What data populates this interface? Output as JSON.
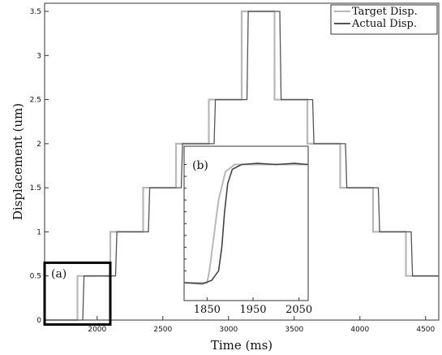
{
  "chart_data": [
    {
      "id": "main",
      "type": "line",
      "xlabel": "Time (ms)",
      "ylabel": "Displacement (um)",
      "xlim": [
        1600,
        4600
      ],
      "ylim": [
        0,
        3.5
      ],
      "x_ticks": [
        2000,
        2500,
        3000,
        3500,
        4000,
        4500
      ],
      "x_tick_labels": [
        "2000",
        "2500",
        "3000",
        "3500",
        "4000",
        "4500"
      ],
      "y_ticks": [
        0,
        0.5,
        1,
        1.5,
        2,
        2.5,
        3,
        3.5
      ],
      "y_tick_labels": [
        "0",
        "0.5",
        "1",
        "1.5",
        "2",
        "2.5",
        "3",
        "3.5"
      ],
      "grid": false,
      "legend_position": "top-right",
      "series": [
        {
          "name": "Target Disp.",
          "color": "#b8b8b8",
          "x": [
            1600,
            1850,
            1850,
            2100,
            2100,
            2350,
            2350,
            2600,
            2600,
            2850,
            2850,
            3100,
            3100,
            3350,
            3350,
            3600,
            3600,
            3850,
            3850,
            4100,
            4100,
            4350,
            4350,
            4600
          ],
          "y": [
            0,
            0,
            0.5,
            0.5,
            1.0,
            1.0,
            1.5,
            1.5,
            2.0,
            2.0,
            2.5,
            2.5,
            3.5,
            3.5,
            2.5,
            2.5,
            2.0,
            2.0,
            1.5,
            1.5,
            1.0,
            1.0,
            0.5,
            0.5
          ]
        },
        {
          "name": "Actual Disp.",
          "color": "#555555",
          "x": [
            1600,
            1890,
            1900,
            2140,
            2150,
            2390,
            2400,
            2640,
            2650,
            2890,
            2900,
            3140,
            3150,
            3390,
            3400,
            3640,
            3650,
            3890,
            3900,
            4140,
            4150,
            4390,
            4400,
            4600
          ],
          "y": [
            0,
            0,
            0.5,
            0.5,
            1.0,
            1.0,
            1.5,
            1.5,
            2.0,
            2.0,
            2.5,
            2.5,
            3.5,
            3.5,
            2.5,
            2.5,
            2.0,
            2.0,
            1.5,
            1.5,
            1.0,
            1.0,
            0.5,
            0.5
          ]
        }
      ],
      "annotations": [
        {
          "label": "(a)",
          "box_x": [
            1600,
            2100
          ],
          "box_y": [
            -0.05,
            0.65
          ]
        }
      ]
    },
    {
      "id": "inset",
      "type": "line",
      "panel_label": "(b)",
      "xlim": [
        1800,
        2070
      ],
      "ylim": [
        0,
        0.55
      ],
      "x_ticks": [
        1850,
        1950,
        2050
      ],
      "x_tick_labels": [
        "1850",
        "1950",
        "2050"
      ],
      "y_ticks": [
        0,
        0.05,
        0.1,
        0.15,
        0.2,
        0.25,
        0.3,
        0.35,
        0.4,
        0.45,
        0.5
      ],
      "series": [
        {
          "name": "Target Disp.",
          "color": "#b8b8b8",
          "x": [
            1800,
            1850,
            1855,
            1865,
            1875,
            1890,
            1910,
            2070
          ],
          "y": [
            0,
            0,
            0.05,
            0.2,
            0.35,
            0.47,
            0.5,
            0.5
          ]
        },
        {
          "name": "Actual Disp.",
          "color": "#444444",
          "x": [
            1800,
            1840,
            1860,
            1875,
            1882,
            1888,
            1895,
            1905,
            1925,
            1960,
            2000,
            2040,
            2070
          ],
          "y": [
            0,
            -0.005,
            0.01,
            0.05,
            0.15,
            0.3,
            0.42,
            0.48,
            0.5,
            0.505,
            0.5,
            0.505,
            0.5
          ]
        }
      ]
    }
  ]
}
